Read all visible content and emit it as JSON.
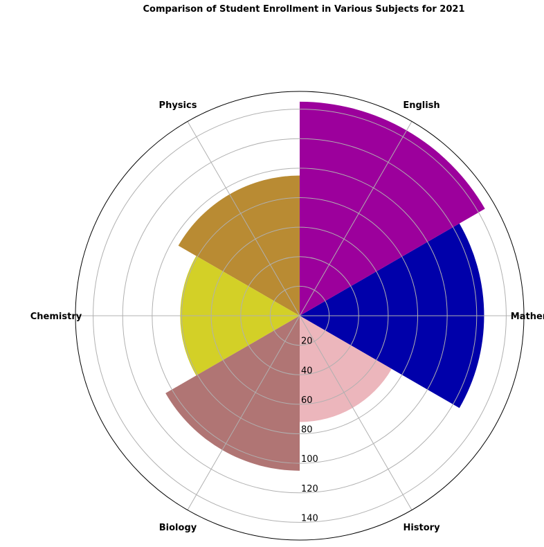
{
  "chart_data": {
    "type": "polar-bar",
    "title": "Comparison of Student Enrollment in Various Subjects for 2021",
    "categories": [
      "Mathematics",
      "English",
      "Physics",
      "Chemistry",
      "Biology",
      "History"
    ],
    "values": [
      125,
      145,
      95,
      81,
      105,
      72
    ],
    "colors": [
      "#0000aa",
      "#9c009c",
      "#b98b33",
      "#d3d027",
      "#b07574",
      "#ecb6bc"
    ],
    "rlim": [
      0,
      152
    ],
    "radial_ticks": [
      20,
      40,
      60,
      80,
      100,
      120,
      140
    ],
    "grid": true
  }
}
